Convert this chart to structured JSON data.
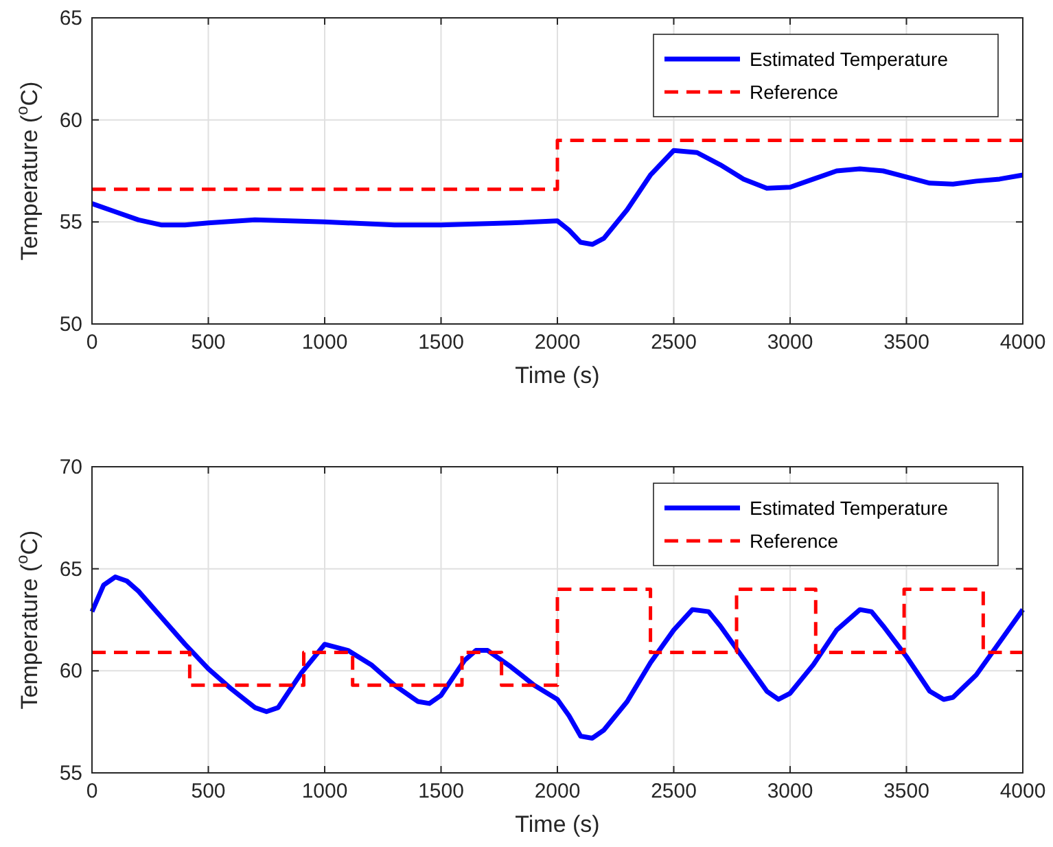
{
  "chart_data": [
    {
      "type": "line",
      "xlabel": "Time (s)",
      "ylabel": "Temperature ($^{o}$C)",
      "xlim": [
        0,
        4000
      ],
      "ylim": [
        50,
        65
      ],
      "xticks": [
        0,
        500,
        1000,
        1500,
        2000,
        2500,
        3000,
        3500,
        4000
      ],
      "yticks": [
        50,
        55,
        60,
        65
      ],
      "grid": true,
      "legend": "top right",
      "series": [
        {
          "name": "Estimated Temperature",
          "color": "#0000ff",
          "line_style": "solid",
          "x": [
            0,
            100,
            200,
            300,
            400,
            500,
            700,
            1000,
            1300,
            1500,
            1800,
            2000,
            2050,
            2100,
            2150,
            2200,
            2300,
            2400,
            2500,
            2600,
            2700,
            2800,
            2900,
            3000,
            3100,
            3200,
            3300,
            3400,
            3500,
            3600,
            3700,
            3800,
            3900,
            4000
          ],
          "values": [
            55.9,
            55.5,
            55.1,
            54.85,
            54.85,
            54.95,
            55.1,
            55.0,
            54.85,
            54.85,
            54.95,
            55.05,
            54.6,
            54.0,
            53.9,
            54.2,
            55.6,
            57.3,
            58.5,
            58.4,
            57.8,
            57.1,
            56.65,
            56.7,
            57.1,
            57.5,
            57.6,
            57.5,
            57.2,
            56.9,
            56.85,
            57.0,
            57.1,
            57.3
          ]
        },
        {
          "name": "Reference",
          "color": "#ff0000",
          "line_style": "dashed",
          "x": [
            0,
            2000,
            2000,
            4000
          ],
          "values": [
            56.6,
            56.6,
            59.0,
            59.0
          ]
        }
      ]
    },
    {
      "type": "line",
      "xlabel": "Time (s)",
      "ylabel": "Temperature ($^{o}$C)",
      "xlim": [
        0,
        4000
      ],
      "ylim": [
        55,
        70
      ],
      "xticks": [
        0,
        500,
        1000,
        1500,
        2000,
        2500,
        3000,
        3500,
        4000
      ],
      "yticks": [
        55,
        60,
        65,
        70
      ],
      "grid": true,
      "legend": "top right",
      "series": [
        {
          "name": "Estimated Temperature",
          "color": "#0000ff",
          "line_style": "solid",
          "x": [
            0,
            50,
            100,
            150,
            200,
            300,
            400,
            500,
            600,
            700,
            750,
            800,
            900,
            1000,
            1100,
            1200,
            1300,
            1400,
            1450,
            1500,
            1600,
            1650,
            1700,
            1800,
            1900,
            2000,
            2050,
            2100,
            2150,
            2200,
            2300,
            2400,
            2500,
            2580,
            2650,
            2700,
            2800,
            2900,
            2950,
            3000,
            3100,
            3200,
            3300,
            3350,
            3400,
            3500,
            3600,
            3660,
            3700,
            3800,
            3900,
            4000
          ],
          "values": [
            62.9,
            64.2,
            64.6,
            64.4,
            63.9,
            62.6,
            61.3,
            60.1,
            59.1,
            58.2,
            58.0,
            58.2,
            59.9,
            61.3,
            61.0,
            60.3,
            59.3,
            58.5,
            58.4,
            58.8,
            60.5,
            61.0,
            61.0,
            60.2,
            59.3,
            58.6,
            57.8,
            56.8,
            56.7,
            57.1,
            58.5,
            60.4,
            62.0,
            63.0,
            62.9,
            62.2,
            60.6,
            59.0,
            58.6,
            58.9,
            60.3,
            62.0,
            63.0,
            62.9,
            62.2,
            60.7,
            59.0,
            58.6,
            58.7,
            59.8,
            61.4,
            63.0
          ]
        },
        {
          "name": "Reference",
          "color": "#ff0000",
          "line_style": "dashed",
          "x": [
            0,
            420,
            420,
            910,
            910,
            1120,
            1120,
            1590,
            1590,
            1760,
            1760,
            2000,
            2000,
            2400,
            2400,
            2770,
            2770,
            3110,
            3110,
            3490,
            3490,
            3830,
            3830,
            4000
          ],
          "values": [
            60.9,
            60.9,
            59.3,
            59.3,
            60.9,
            60.9,
            59.3,
            59.3,
            60.9,
            60.9,
            59.3,
            59.3,
            64.0,
            64.0,
            60.9,
            60.9,
            64.0,
            64.0,
            60.9,
            60.9,
            64.0,
            64.0,
            60.9,
            60.9
          ]
        }
      ]
    }
  ]
}
